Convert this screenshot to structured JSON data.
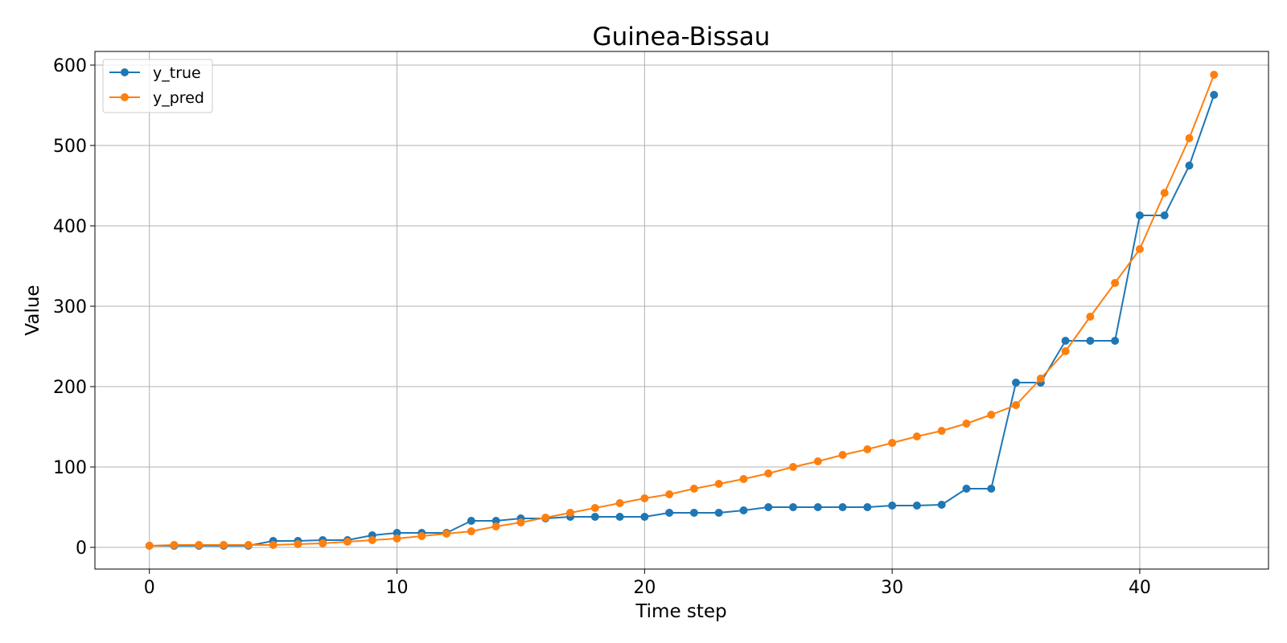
{
  "chart_data": {
    "type": "line",
    "title": "Guinea-Bissau",
    "xlabel": "Time step",
    "ylabel": "Value",
    "xlim": [
      -2.2,
      45.2
    ],
    "ylim": [
      -27,
      617
    ],
    "xticks": [
      0,
      10,
      20,
      30,
      40
    ],
    "yticks": [
      0,
      100,
      200,
      300,
      400,
      500,
      600
    ],
    "grid": true,
    "legend_position": "top-left",
    "x": [
      0,
      1,
      2,
      3,
      4,
      5,
      6,
      7,
      8,
      9,
      10,
      11,
      12,
      13,
      14,
      15,
      16,
      17,
      18,
      19,
      20,
      21,
      22,
      23,
      24,
      25,
      26,
      27,
      28,
      29,
      30,
      31,
      32,
      33,
      34,
      35,
      36,
      37,
      38,
      39,
      40,
      41,
      42,
      43
    ],
    "series": [
      {
        "name": "y_true",
        "color": "#1f77b4",
        "marker": "circle",
        "values": [
          2,
          2,
          2,
          2,
          2,
          8,
          8,
          9,
          9,
          15,
          18,
          18,
          18,
          33,
          33,
          36,
          36,
          38,
          38,
          38,
          38,
          43,
          43,
          43,
          46,
          50,
          50,
          50,
          50,
          50,
          52,
          52,
          53,
          73,
          73,
          205,
          205,
          257,
          257,
          257,
          413,
          413,
          475,
          563
        ]
      },
      {
        "name": "y_pred",
        "color": "#ff7f0e",
        "marker": "circle",
        "values": [
          2,
          3,
          3,
          3,
          3,
          3,
          4,
          5,
          7,
          9,
          11,
          14,
          17,
          20,
          26,
          31,
          37,
          43,
          49,
          55,
          61,
          66,
          73,
          79,
          85,
          92,
          100,
          107,
          115,
          122,
          130,
          138,
          145,
          154,
          165,
          177,
          210,
          244,
          287,
          329,
          371,
          441,
          509,
          588
        ]
      }
    ]
  }
}
